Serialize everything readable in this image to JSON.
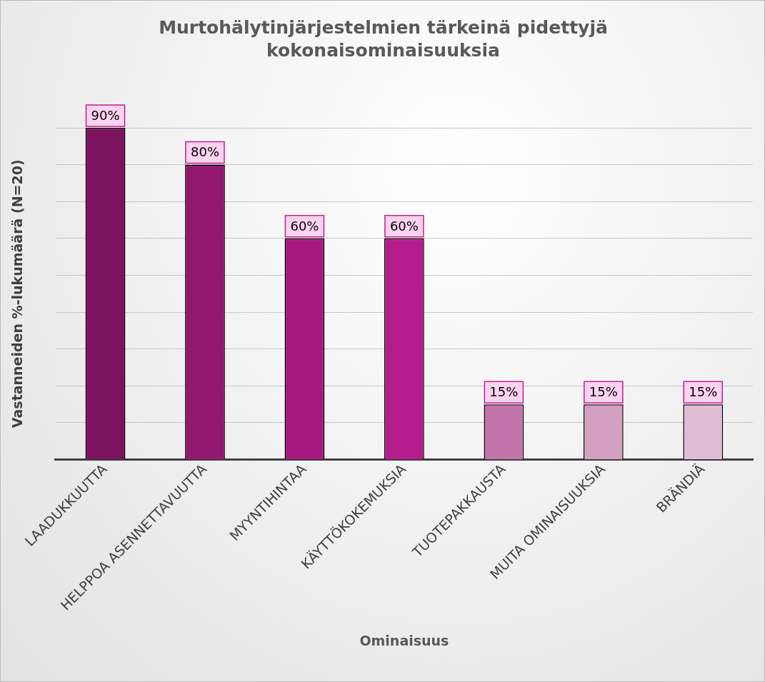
{
  "chart_data": {
    "type": "bar",
    "title": "Murtohälytinjärjestelmien tärkeinä pidettyjä kokonaisominaisuuksia",
    "xlabel": "Ominaisuus",
    "ylabel": "Vastanneiden %-lukumäärä (N=20)",
    "categories": [
      "LAADUKKUUTTA",
      "HELPPOA ASENNETTAVUUTTA",
      "MYYNTIHINTAA",
      "KÄYTTÖKOKEMUKSIA",
      "TUOTEPAKKAUSTA",
      "MUITA OMINAISUUKSIA",
      "BRÄNDIÄ"
    ],
    "values": [
      90,
      80,
      60,
      60,
      15,
      15,
      15
    ],
    "colors": [
      "#7b1360",
      "#921870",
      "#a8197f",
      "#b51d8f",
      "#c375ab",
      "#d49fc0",
      "#dfbcd4"
    ],
    "value_labels": [
      "90%",
      "80%",
      "60%",
      "60%",
      "15%",
      "15%",
      "15%"
    ],
    "tick_labels": "x",
    "grid": "y",
    "legend": false
  }
}
